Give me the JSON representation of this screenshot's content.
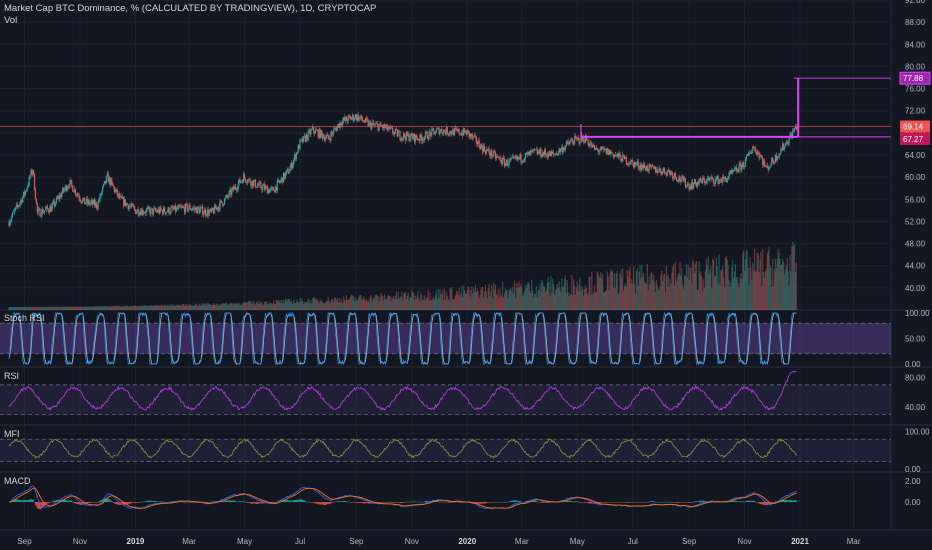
{
  "header": {
    "title": "Market Cap BTC Dominance, % (CALCULATED BY TRADINGVIEW), 1D, CRYPTOCAP",
    "volume_label": "Vol"
  },
  "colors": {
    "background": "#131722",
    "grid": "#1e222d",
    "up": "#26a69a",
    "down": "#ef5350",
    "magenta": "#e040fb",
    "purple_line": "#b03ad8",
    "stoch_k": "#2196f3",
    "stoch_d": "#b2b5be",
    "mfi": "#7e9a3a",
    "macd_line": "#2962ff",
    "signal_line": "#ff6d00",
    "pink_band": "#9c27b0"
  },
  "price_badges": {
    "target": "77.88",
    "current": "69.14",
    "support": "67.27"
  },
  "indicator_labels": {
    "stoch": "Stoch RSI",
    "rsi": "RSI",
    "mfi": "MFI",
    "macd": "MACD"
  },
  "chart_data": {
    "type": "candlestick",
    "title": "Market Cap BTC Dominance, % (CALCULATED BY TRADINGVIEW), 1D, CRYPTOCAP",
    "x_labels": [
      "Sep",
      "Nov",
      "2019",
      "Mar",
      "May",
      "Jul",
      "Sep",
      "Nov",
      "2020",
      "Mar",
      "May",
      "Jul",
      "Sep",
      "Nov",
      "2021",
      "Mar"
    ],
    "price_axis": {
      "ylim": [
        36,
        92
      ],
      "ticks": [
        "40.00",
        "44.00",
        "48.00",
        "52.00",
        "56.00",
        "60.00",
        "64.00",
        "68.00",
        "72.00",
        "76.00",
        "80.00",
        "84.00",
        "88.00",
        "92.00"
      ]
    },
    "price_path": [
      [
        "2018-08-15",
        52.0
      ],
      [
        "2018-09-01",
        57.0
      ],
      [
        "2018-09-10",
        61.5
      ],
      [
        "2018-09-15",
        53.5
      ],
      [
        "2018-10-01",
        54.5
      ],
      [
        "2018-10-20",
        59.0
      ],
      [
        "2018-11-05",
        55.5
      ],
      [
        "2018-11-20",
        55.0
      ],
      [
        "2018-12-01",
        60.0
      ],
      [
        "2018-12-15",
        56.0
      ],
      [
        "2019-01-01",
        54.0
      ],
      [
        "2019-01-20",
        53.8
      ],
      [
        "2019-02-10",
        54.0
      ],
      [
        "2019-03-01",
        54.5
      ],
      [
        "2019-03-25",
        53.5
      ],
      [
        "2019-04-10",
        56.0
      ],
      [
        "2019-04-30",
        60.0
      ],
      [
        "2019-05-15",
        58.5
      ],
      [
        "2019-06-01",
        57.5
      ],
      [
        "2019-06-20",
        61.5
      ],
      [
        "2019-07-01",
        66.0
      ],
      [
        "2019-07-15",
        68.5
      ],
      [
        "2019-08-01",
        67.0
      ],
      [
        "2019-08-15",
        70.0
      ],
      [
        "2019-09-01",
        71.0
      ],
      [
        "2019-09-15",
        69.5
      ],
      [
        "2019-10-01",
        69.0
      ],
      [
        "2019-10-20",
        67.5
      ],
      [
        "2019-11-10",
        67.0
      ],
      [
        "2019-12-01",
        68.5
      ],
      [
        "2019-12-15",
        68.2
      ],
      [
        "2020-01-01",
        68.0
      ],
      [
        "2020-01-20",
        65.0
      ],
      [
        "2020-02-12",
        62.5
      ],
      [
        "2020-03-01",
        63.5
      ],
      [
        "2020-03-15",
        64.5
      ],
      [
        "2020-04-05",
        64.0
      ],
      [
        "2020-04-25",
        66.5
      ],
      [
        "2020-05-10",
        67.0
      ],
      [
        "2020-05-20",
        65.0
      ],
      [
        "2020-06-05",
        64.5
      ],
      [
        "2020-07-01",
        62.5
      ],
      [
        "2020-07-20",
        61.5
      ],
      [
        "2020-08-10",
        61.0
      ],
      [
        "2020-09-01",
        58.5
      ],
      [
        "2020-09-20",
        59.5
      ],
      [
        "2020-10-10",
        59.5
      ],
      [
        "2020-11-01",
        62.5
      ],
      [
        "2020-11-10",
        65.5
      ],
      [
        "2020-11-18",
        64.0
      ],
      [
        "2020-11-25",
        61.5
      ],
      [
        "2020-12-05",
        63.5
      ],
      [
        "2020-12-20",
        67.0
      ],
      [
        "2020-12-28",
        69.14
      ]
    ],
    "annotations": [
      {
        "type": "hline",
        "value": 69.14,
        "label": "69.14"
      },
      {
        "type": "hline",
        "value": 67.27,
        "label": "67.27"
      },
      {
        "type": "hline",
        "value": 77.88,
        "label": "77.88"
      },
      {
        "type": "box",
        "from": "2020-05-05",
        "to": "2020-12-30",
        "value": 67.27
      },
      {
        "type": "vline",
        "at": "2020-12-30",
        "from_value": 67.27,
        "to_value": 77.88
      }
    ],
    "indicators": [
      {
        "name": "Stoch RSI",
        "ticks": [
          "100.00",
          "50.00",
          "0.00"
        ],
        "band": [
          20,
          80
        ]
      },
      {
        "name": "RSI",
        "ticks": [
          "80.00",
          "40.00"
        ],
        "band": [
          30,
          70
        ]
      },
      {
        "name": "MFI",
        "ticks": [
          "100.00",
          "0.00"
        ],
        "band": [
          20,
          80
        ]
      },
      {
        "name": "MACD",
        "ticks": [
          "2.00",
          "0.00"
        ]
      }
    ]
  }
}
